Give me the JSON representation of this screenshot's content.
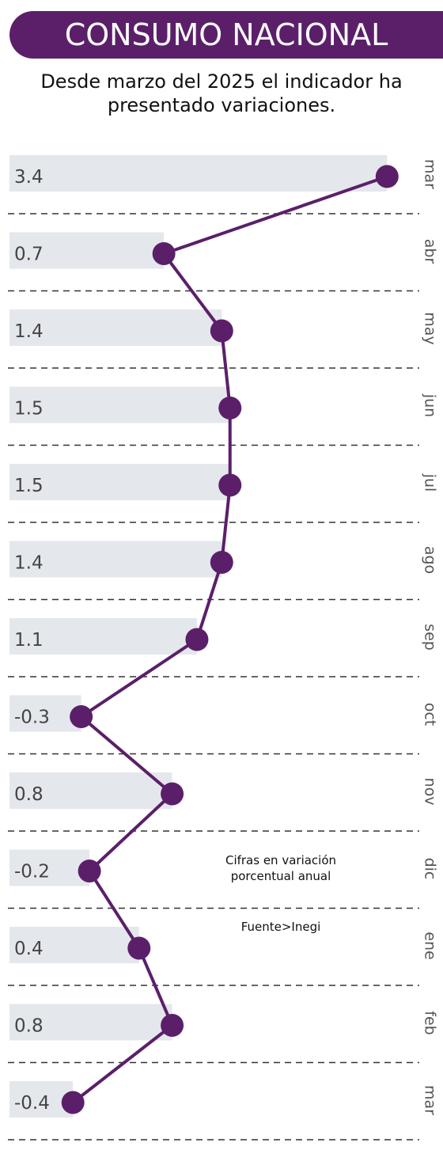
{
  "header": {
    "title": "CONSUMO NACIONAL",
    "subtitle": "Desde marzo del 2025 el indicador ha presentado variaciones."
  },
  "notes": {
    "units": "Cifras en variación porcentual anual",
    "source": "Fuente>Inegi"
  },
  "colors": {
    "accent": "#5b1f6a",
    "bar_background": "#e4e7ec",
    "value_text": "#444444",
    "month_text": "#555555",
    "separator": "#333333"
  },
  "chart_data": {
    "type": "line",
    "orientation": "vertical",
    "categories": [
      "mar",
      "abr",
      "may",
      "jun",
      "jul",
      "ago",
      "sep",
      "oct",
      "nov",
      "dic",
      "ene",
      "feb",
      "mar"
    ],
    "value_labels": [
      "3.4",
      "0.7",
      "1.4",
      "1.5",
      "1.5",
      "1.4",
      "1.1",
      "-0.3",
      "0.8",
      "-0.2",
      "0.4",
      "0.8",
      "-0.4"
    ],
    "values": [
      3.4,
      0.7,
      1.4,
      1.5,
      1.5,
      1.4,
      1.1,
      -0.3,
      0.8,
      -0.2,
      0.4,
      0.8,
      -0.4
    ],
    "grid": true
  }
}
